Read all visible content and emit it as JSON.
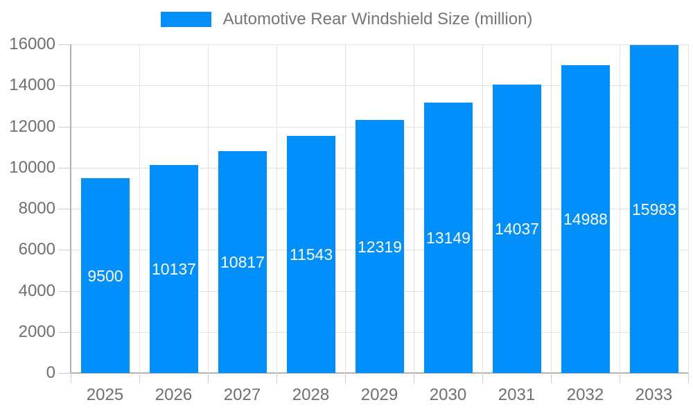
{
  "legend": {
    "label": "Automotive Rear Windshield Size (million)"
  },
  "colors": {
    "bar": "#008FFB",
    "background": "#ffffff",
    "gridline": "#e2e2e2",
    "axis_line": "#b3b3b3",
    "tick_mark": "#cfcfcf",
    "axis_label_text": "#6f6f6f",
    "legend_text": "#757575",
    "bar_label_text": "#ffffff"
  },
  "chart_data": {
    "type": "bar",
    "title": "Automotive Rear Windshield Size (million)",
    "categories": [
      "2025",
      "2026",
      "2027",
      "2028",
      "2029",
      "2030",
      "2031",
      "2032",
      "2033"
    ],
    "series": [
      {
        "name": "Automotive Rear Windshield Size (million)",
        "values": [
          9500,
          10137,
          10817,
          11543,
          12319,
          13149,
          14037,
          14988,
          15983
        ]
      }
    ],
    "xlabel": "",
    "ylabel": "",
    "ylim": [
      0,
      16000
    ],
    "ytick_interval": 2000,
    "yticks": [
      0,
      2000,
      4000,
      6000,
      8000,
      10000,
      12000,
      14000,
      16000
    ],
    "grid": true,
    "legend_position": "top",
    "data_labels": {
      "position": "inside-center",
      "color": "#ffffff"
    }
  }
}
